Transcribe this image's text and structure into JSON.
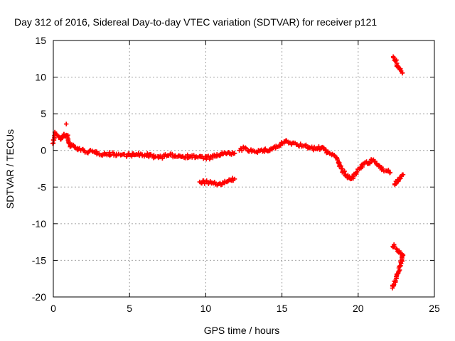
{
  "chart_data": {
    "type": "scatter",
    "title": "Day 312 of 2016, Sidereal Day-to-day VTEC variation (SDTVAR) for receiver p121",
    "xlabel": "GPS time / hours",
    "ylabel": "SDTVAR / TECUs",
    "xlim": [
      0,
      25
    ],
    "ylim": [
      -20,
      15
    ],
    "x_ticks": [
      0,
      5,
      10,
      15,
      20,
      25
    ],
    "x_tick_labels": [
      "0",
      "5",
      "10",
      "15",
      "20",
      "25"
    ],
    "y_ticks": [
      -20,
      -15,
      -10,
      -5,
      0,
      5,
      10,
      15
    ],
    "y_tick_labels": [
      "-20",
      "-15",
      "-10",
      "-5",
      "0",
      "5",
      "10",
      "15"
    ],
    "grid": true,
    "marker": "plus",
    "color": "#ff0000",
    "series": [
      {
        "name": "main-track",
        "x": [
          0.0,
          0.1,
          0.2,
          0.3,
          0.4,
          0.5,
          0.6,
          0.7,
          0.8,
          0.9,
          1.0,
          1.1,
          1.2,
          1.4,
          1.6,
          1.8,
          2.0,
          2.3,
          2.6,
          3.0,
          3.5,
          4.0,
          4.5,
          5.0,
          5.5,
          6.0,
          6.5,
          7.0,
          7.5,
          8.0,
          8.5,
          9.0,
          9.5,
          10.0,
          10.3,
          10.6,
          11.0,
          11.3,
          11.6,
          11.9
        ],
        "y": [
          1.0,
          2.5,
          2.2,
          2.0,
          1.8,
          1.5,
          1.8,
          2.2,
          1.9,
          2.0,
          1.2,
          0.5,
          0.8,
          0.4,
          0.3,
          0.0,
          0.0,
          -0.2,
          -0.2,
          -0.4,
          -0.5,
          -0.5,
          -0.6,
          -0.6,
          -0.6,
          -0.6,
          -0.8,
          -0.9,
          -0.7,
          -0.7,
          -0.8,
          -0.8,
          -0.9,
          -1.0,
          -1.0,
          -0.8,
          -0.5,
          -0.4,
          -0.5,
          -0.4
        ]
      },
      {
        "name": "isolated-point",
        "x": [
          0.85
        ],
        "y": [
          3.6
        ]
      },
      {
        "name": "lower-track",
        "x": [
          9.6,
          9.9,
          10.2,
          10.5,
          10.8,
          11.1,
          11.4,
          11.7,
          11.9
        ],
        "y": [
          -4.3,
          -4.3,
          -4.4,
          -4.5,
          -4.6,
          -4.4,
          -4.3,
          -4.1,
          -3.9
        ]
      },
      {
        "name": "afternoon-track",
        "x": [
          12.2,
          12.5,
          12.8,
          13.1,
          13.5,
          14.0,
          14.4,
          14.8,
          15.2,
          15.6,
          16.0,
          16.4,
          16.8,
          17.2,
          17.6,
          18.0,
          18.3,
          18.6,
          18.9,
          19.2,
          19.5,
          19.8,
          20.1,
          20.4,
          20.7,
          21.0,
          21.3,
          21.6,
          21.9,
          22.1
        ],
        "y": [
          0.0,
          0.3,
          0.0,
          0.0,
          -0.1,
          0.0,
          0.3,
          0.6,
          1.2,
          1.0,
          0.8,
          0.6,
          0.4,
          0.2,
          0.4,
          -0.3,
          -0.5,
          -1.0,
          -2.5,
          -3.5,
          -3.9,
          -3.2,
          -2.5,
          -1.8,
          -1.7,
          -1.3,
          -2.0,
          -2.5,
          -2.8,
          -3.0
        ]
      },
      {
        "name": "late-track-upper",
        "x": [
          22.3,
          22.45,
          22.6,
          22.75,
          22.9
        ],
        "y": [
          12.8,
          12.2,
          11.5,
          11.0,
          10.6
        ]
      },
      {
        "name": "late-track-middle",
        "x": [
          22.4,
          22.55,
          22.7,
          22.85,
          22.95
        ],
        "y": [
          -4.7,
          -4.3,
          -3.9,
          -3.5,
          -3.3
        ]
      },
      {
        "name": "late-track-lower",
        "x": [
          22.25,
          22.35,
          22.5,
          22.65,
          22.8,
          22.95,
          22.3,
          22.35
        ],
        "y": [
          -18.8,
          -18.3,
          -17.5,
          -16.5,
          -15.3,
          -14.3,
          -13.2,
          -12.9
        ]
      }
    ]
  }
}
